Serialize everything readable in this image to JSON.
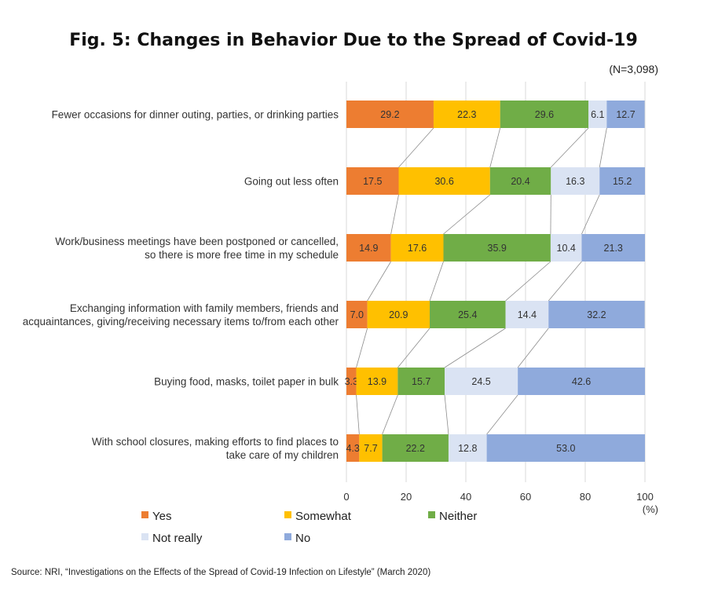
{
  "chart_data": {
    "type": "bar",
    "orientation": "horizontal",
    "stacked": "100%",
    "title": "Fig. 5: Changes in Behavior Due to the Spread of Covid-19",
    "sample_note": "(N=3,098)",
    "unit_label": "(%)",
    "source": "Source: NRI, “Investigations on the Effects of the Spread of Covid-19 Infection on Lifestyle” (March 2020)",
    "xlim": [
      0,
      100
    ],
    "xticks": [
      0,
      20,
      40,
      60,
      80,
      100
    ],
    "grid": true,
    "legend_position": "bottom",
    "categories": [
      [
        "Fewer occasions for dinner outing, parties, or drinking parties"
      ],
      [
        "Going out less often"
      ],
      [
        "Work/business meetings have been postponed or cancelled,",
        "so there is more free time in my schedule"
      ],
      [
        "Exchanging information with family members, friends and",
        "acquaintances, giving/receiving necessary items to/from each other"
      ],
      [
        "Buying food, masks, toilet paper in bulk"
      ],
      [
        "With school closures, making efforts to find places to",
        "take care of my children"
      ]
    ],
    "series": [
      {
        "name": "Yes",
        "color": "#ED7D31",
        "values": [
          29.2,
          17.5,
          14.9,
          7.0,
          3.3,
          4.3
        ]
      },
      {
        "name": "Somewhat",
        "color": "#FFC000",
        "values": [
          22.3,
          30.6,
          17.6,
          20.9,
          13.9,
          7.7
        ]
      },
      {
        "name": "Neither",
        "color": "#70AD47",
        "values": [
          29.6,
          20.4,
          35.9,
          25.4,
          15.7,
          22.2
        ]
      },
      {
        "name": "Not really",
        "color": "#DAE3F3",
        "values": [
          6.1,
          16.3,
          10.4,
          14.4,
          24.5,
          12.8
        ]
      },
      {
        "name": "No",
        "color": "#8FAADC",
        "values": [
          12.7,
          15.2,
          21.3,
          32.2,
          42.6,
          53.0
        ]
      }
    ],
    "series_lines": true
  }
}
